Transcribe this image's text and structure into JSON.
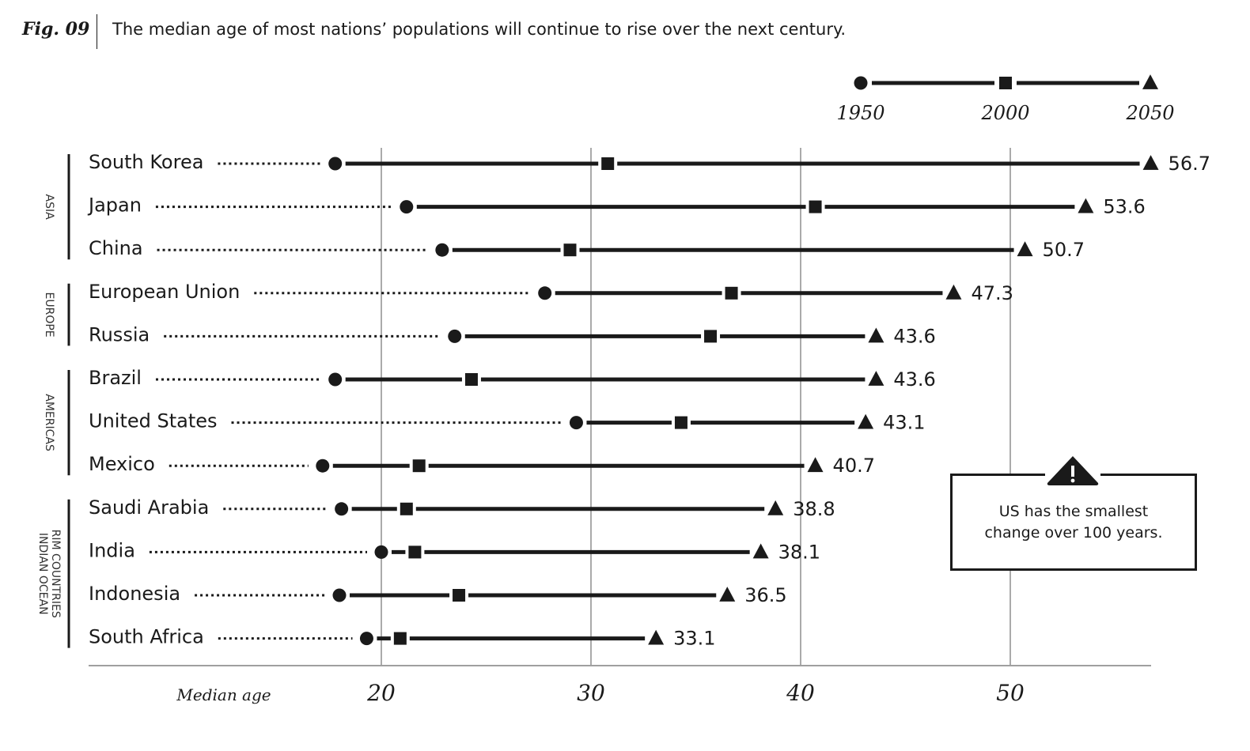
{
  "header": {
    "fig_label": "Fig. 09",
    "subtitle": "The median age of most nations’ populations will continue to rise over the next century."
  },
  "callout": {
    "text_line1": "US has the smallest",
    "text_line2": "change over 100 years.",
    "icon": "warning-icon"
  },
  "chart_data": {
    "type": "dumbbell",
    "xlabel": "Median age",
    "x_ticks": [
      20,
      30,
      40,
      50
    ],
    "xlim": [
      6,
      57
    ],
    "grid": "vertical",
    "legend": {
      "placement": "top-right",
      "entries": [
        {
          "label": "1950",
          "marker": "circle"
        },
        {
          "label": "2000",
          "marker": "square"
        },
        {
          "label": "2050",
          "marker": "triangle"
        }
      ]
    },
    "groups": [
      {
        "label": "ASIA",
        "rows": [
          0,
          2
        ]
      },
      {
        "label": "EUROPE",
        "rows": [
          3,
          4
        ]
      },
      {
        "label": "AMERICAS",
        "rows": [
          5,
          7
        ]
      },
      {
        "label": "INDIAN OCEAN RIM COUNTRIES",
        "lines": [
          "INDIAN OCEAN",
          "RIM COUNTRIES"
        ],
        "rows": [
          8,
          11
        ]
      }
    ],
    "countries": [
      {
        "name": "South Korea",
        "y1950": 17.8,
        "y2000": 30.8,
        "y2050": 56.7,
        "label": "56.7"
      },
      {
        "name": "Japan",
        "y1950": 21.2,
        "y2000": 40.7,
        "y2050": 53.6,
        "label": "53.6"
      },
      {
        "name": "China",
        "y1950": 22.9,
        "y2000": 29.0,
        "y2050": 50.7,
        "label": "50.7"
      },
      {
        "name": "European Union",
        "y1950": 27.8,
        "y2000": 36.7,
        "y2050": 47.3,
        "label": "47.3"
      },
      {
        "name": "Russia",
        "y1950": 23.5,
        "y2000": 35.7,
        "y2050": 43.6,
        "label": "43.6"
      },
      {
        "name": "Brazil",
        "y1950": 17.8,
        "y2000": 24.3,
        "y2050": 43.6,
        "label": "43.6"
      },
      {
        "name": "United States",
        "y1950": 29.3,
        "y2000": 34.3,
        "y2050": 43.1,
        "label": "43.1"
      },
      {
        "name": "Mexico",
        "y1950": 17.2,
        "y2000": 21.8,
        "y2050": 40.7,
        "label": "40.7"
      },
      {
        "name": "Saudi Arabia",
        "y1950": 18.1,
        "y2000": 21.2,
        "y2050": 38.8,
        "label": "38.8"
      },
      {
        "name": "India",
        "y1950": 20.0,
        "y2000": 21.6,
        "y2050": 38.1,
        "label": "38.1"
      },
      {
        "name": "Indonesia",
        "y1950": 18.0,
        "y2000": 23.7,
        "y2050": 36.5,
        "label": "36.5"
      },
      {
        "name": "South Africa",
        "y1950": 19.3,
        "y2000": 20.9,
        "y2050": 33.1,
        "label": "33.1"
      }
    ]
  }
}
